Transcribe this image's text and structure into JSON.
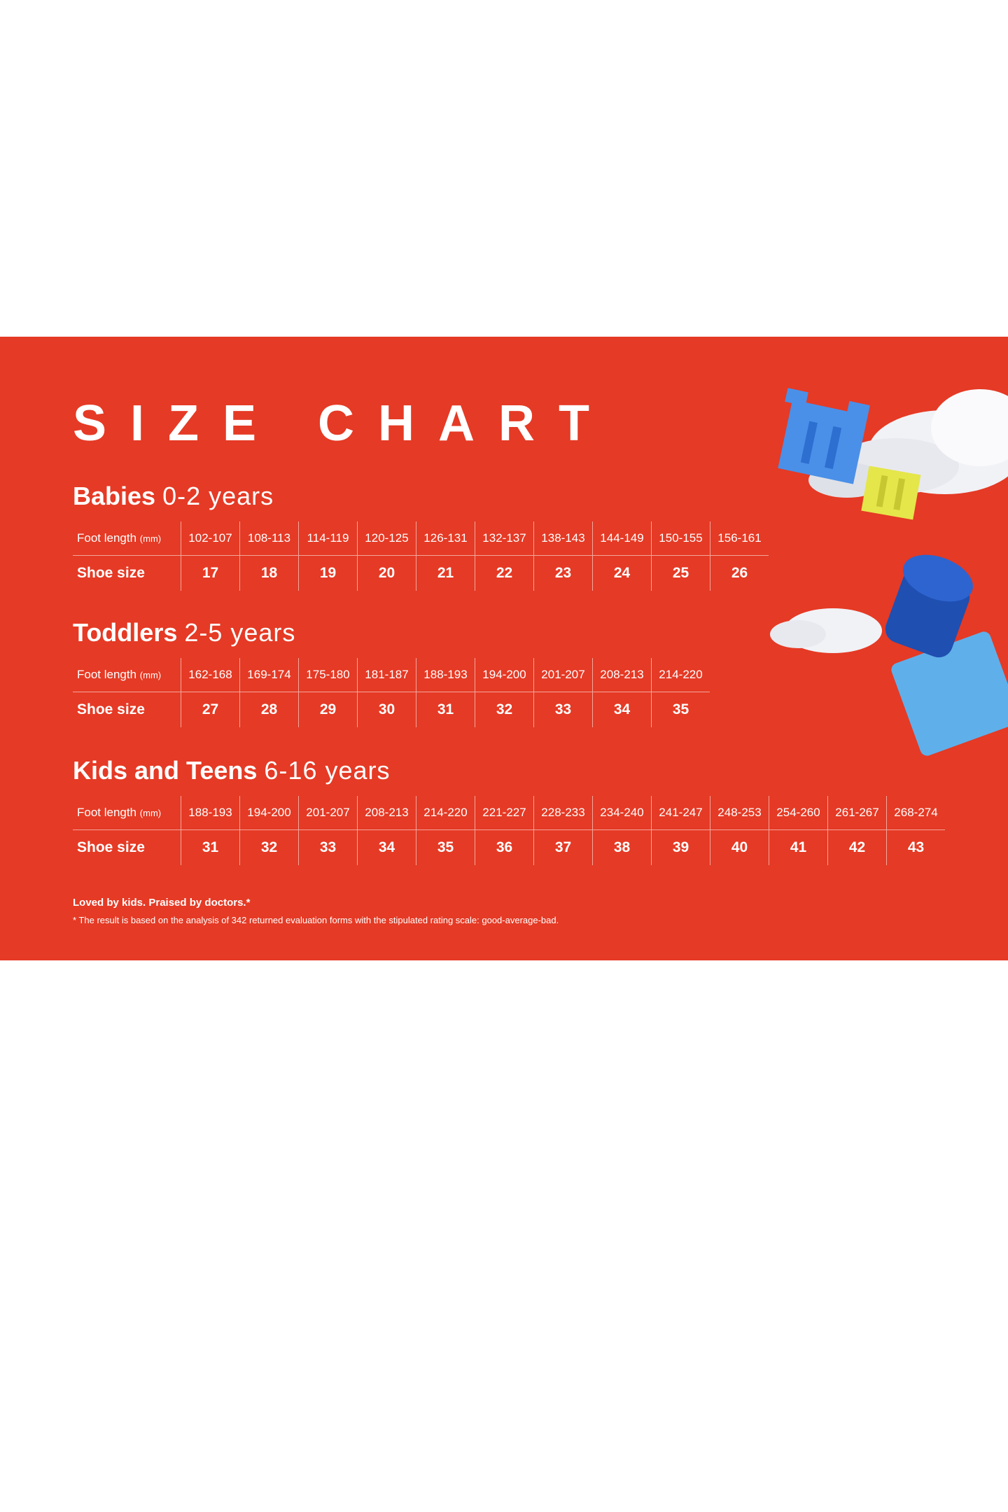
{
  "title": "SIZE CHART",
  "colors": {
    "background": "#e53a25",
    "text": "#ffffff"
  },
  "row_labels": {
    "foot_length": "Foot length",
    "foot_length_unit": "(mm)",
    "shoe_size": "Shoe size"
  },
  "sections": [
    {
      "name": "Babies",
      "age": "0-2 years",
      "foot_length": [
        "102-107",
        "108-113",
        "114-119",
        "120-125",
        "126-131",
        "132-137",
        "138-143",
        "144-149",
        "150-155",
        "156-161"
      ],
      "shoe_size": [
        "17",
        "18",
        "19",
        "20",
        "21",
        "22",
        "23",
        "24",
        "25",
        "26"
      ]
    },
    {
      "name": "Toddlers",
      "age": "2-5 years",
      "foot_length": [
        "162-168",
        "169-174",
        "175-180",
        "181-187",
        "188-193",
        "194-200",
        "201-207",
        "208-213",
        "214-220"
      ],
      "shoe_size": [
        "27",
        "28",
        "29",
        "30",
        "31",
        "32",
        "33",
        "34",
        "35"
      ]
    },
    {
      "name": "Kids and Teens",
      "age": "6-16 years",
      "foot_length": [
        "188-193",
        "194-200",
        "201-207",
        "208-213",
        "214-220",
        "221-227",
        "228-233",
        "234-240",
        "241-247",
        "248-253",
        "254-260",
        "261-267",
        "268-274"
      ],
      "shoe_size": [
        "31",
        "32",
        "33",
        "34",
        "35",
        "36",
        "37",
        "38",
        "39",
        "40",
        "41",
        "42",
        "43"
      ]
    }
  ],
  "footnote": {
    "tagline": "Loved by kids. Praised by doctors.*",
    "detail": "* The result is based on the analysis of 342 returned evaluation forms with the stipulated rating scale: good-average-bad."
  }
}
